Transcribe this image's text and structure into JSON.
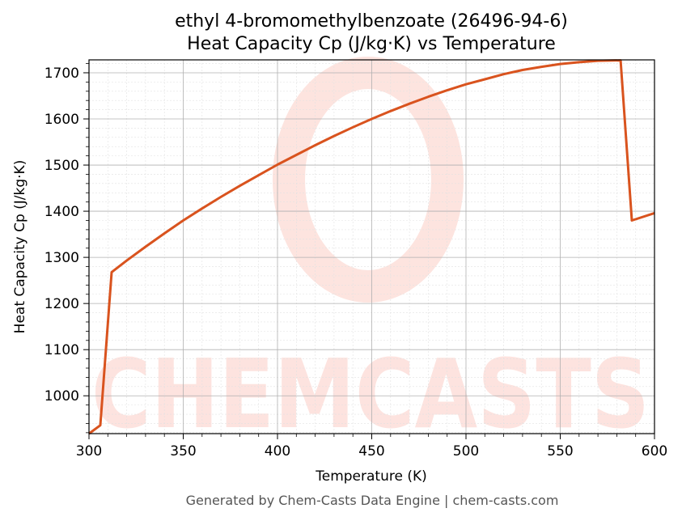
{
  "chart_data": {
    "type": "line",
    "title_line1": "ethyl 4-bromomethylbenzoate (26496-94-6)",
    "title_line2": "Heat Capacity Cp (J/kg·K) vs Temperature",
    "xlabel": "Temperature (K)",
    "ylabel": "Heat Capacity Cp (J/kg·K)",
    "xlim": [
      300,
      600
    ],
    "ylim": [
      918,
      1728
    ],
    "x_ticks": [
      300,
      350,
      400,
      450,
      500,
      550,
      600
    ],
    "y_ticks": [
      1000,
      1100,
      1200,
      1300,
      1400,
      1500,
      1600,
      1700
    ],
    "grid": true,
    "series": [
      {
        "color": "#d9531e",
        "points": [
          [
            300,
            918
          ],
          [
            306,
            936
          ],
          [
            312,
            1268
          ],
          [
            320,
            1293
          ],
          [
            330,
            1323
          ],
          [
            340,
            1352
          ],
          [
            350,
            1380
          ],
          [
            360,
            1406
          ],
          [
            370,
            1431
          ],
          [
            380,
            1455
          ],
          [
            390,
            1478
          ],
          [
            400,
            1501
          ],
          [
            410,
            1522
          ],
          [
            420,
            1543
          ],
          [
            430,
            1563
          ],
          [
            440,
            1582
          ],
          [
            450,
            1600
          ],
          [
            460,
            1617
          ],
          [
            470,
            1633
          ],
          [
            480,
            1648
          ],
          [
            490,
            1662
          ],
          [
            500,
            1675
          ],
          [
            510,
            1686
          ],
          [
            520,
            1697
          ],
          [
            530,
            1706
          ],
          [
            540,
            1713
          ],
          [
            550,
            1719
          ],
          [
            560,
            1723
          ],
          [
            570,
            1726
          ],
          [
            582,
            1727
          ],
          [
            588,
            1380
          ],
          [
            600,
            1396
          ]
        ]
      }
    ]
  },
  "watermark": {
    "text": "CHEMCASTS",
    "color": "#fde1dc"
  },
  "footer": "Generated by Chem-Casts Data Engine | chem-casts.com"
}
